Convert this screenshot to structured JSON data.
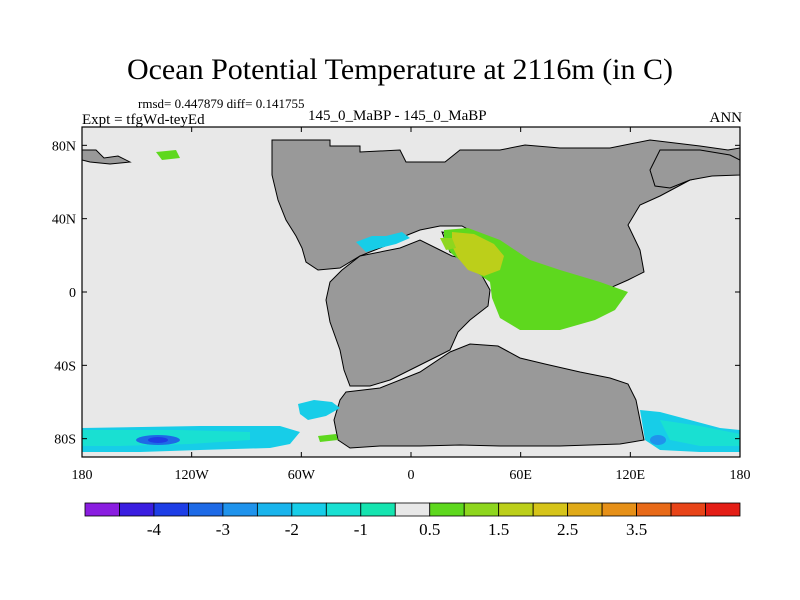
{
  "chart_data": {
    "type": "heatmap",
    "title": "Ocean Potential Temperature at 2116m (in C)",
    "stats": "rmsd= 0.447879  diff= 0.141755",
    "expt": "Expt = tfgWd-teyEd",
    "cases": "145_0_MaBP - 145_0_MaBP",
    "season": "ANN",
    "xlim": [
      -180,
      180
    ],
    "ylim": [
      -90,
      90
    ],
    "x_ticks": [
      {
        "value": -180,
        "label": "180"
      },
      {
        "value": -120,
        "label": "120W"
      },
      {
        "value": -60,
        "label": "60W"
      },
      {
        "value": 0,
        "label": "0"
      },
      {
        "value": 60,
        "label": "60E"
      },
      {
        "value": 120,
        "label": "120E"
      },
      {
        "value": 180,
        "label": "180"
      }
    ],
    "y_ticks": [
      {
        "value": 80,
        "label": "80N"
      },
      {
        "value": 40,
        "label": "40N"
      },
      {
        "value": 0,
        "label": "0"
      },
      {
        "value": -40,
        "label": "40S"
      },
      {
        "value": -80,
        "label": "80S"
      }
    ],
    "colorbar": {
      "levels": [
        -4.5,
        -4,
        -3.5,
        -3,
        -2.5,
        -2,
        -1.5,
        -1,
        -0.5,
        0.5,
        1,
        1.5,
        2,
        2.5,
        3,
        3.5,
        4,
        4.5
      ],
      "colors": [
        "#8a1de0",
        "#3a1ee0",
        "#1e3ee6",
        "#1e6ae6",
        "#1f93ec",
        "#19b4ec",
        "#17cde8",
        "#19e0d2",
        "#15e4b0",
        "#e8e8e8",
        "#5ed81e",
        "#8ed61e",
        "#bccf1a",
        "#d6c419",
        "#e0aa18",
        "#e69018",
        "#e86a18",
        "#e84418",
        "#e41e16"
      ],
      "labels": [
        {
          "value": -4,
          "label": "-4"
        },
        {
          "value": -3,
          "label": "-3"
        },
        {
          "value": -2,
          "label": "-2"
        },
        {
          "value": -1,
          "label": "-1"
        },
        {
          "value": 0.5,
          "label": "0.5"
        },
        {
          "value": 1.5,
          "label": "1.5"
        },
        {
          "value": 2.5,
          "label": "2.5"
        },
        {
          "value": 3.5,
          "label": "3.5"
        }
      ]
    },
    "colors": {
      "ocean_neutral": "#e8e8e8",
      "land": "#999999",
      "frame": "#000000"
    }
  }
}
